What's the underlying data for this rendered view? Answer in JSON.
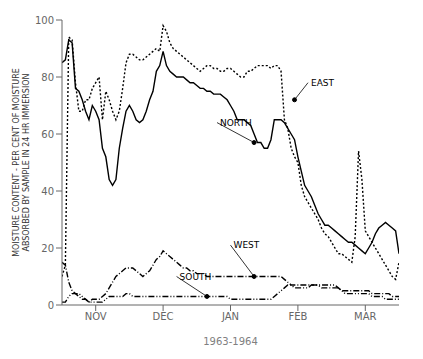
{
  "chart_data": {
    "type": "line",
    "x_label": "1963-1964",
    "y_label": "MOISTURE CONTENT - PER CENT OF MOISTURE\nABSORBED BY SAMPLE IN 24 HR IMMERSION",
    "xlim": [
      0,
      100
    ],
    "xticks": [
      {
        "value": 10,
        "label": "NOV"
      },
      {
        "value": 30,
        "label": "DEC"
      },
      {
        "value": 50,
        "label": "JAN"
      },
      {
        "value": 70,
        "label": "FEB"
      },
      {
        "value": 90,
        "label": "MAR"
      }
    ],
    "ylim": [
      0,
      100
    ],
    "yticks": [
      0,
      20,
      40,
      60,
      80,
      100
    ],
    "grid": false,
    "x": [
      0,
      1,
      2,
      3,
      4,
      5,
      6,
      7,
      8,
      9,
      10,
      11,
      12,
      13,
      14,
      15,
      16,
      17,
      18,
      19,
      20,
      21,
      22,
      23,
      24,
      25,
      26,
      27,
      28,
      29,
      30,
      31,
      32,
      33,
      34,
      35,
      36,
      37,
      38,
      39,
      40,
      41,
      42,
      43,
      44,
      45,
      46,
      47,
      48,
      49,
      50,
      51,
      52,
      53,
      54,
      55,
      56,
      57,
      58,
      59,
      60,
      61,
      62,
      63,
      64,
      65,
      66,
      67,
      68,
      69,
      70,
      71,
      72,
      73,
      74,
      75,
      76,
      77,
      78,
      79,
      80,
      81,
      82,
      83,
      84,
      85,
      86,
      87,
      88,
      89,
      90,
      91,
      92,
      93,
      94,
      95,
      96,
      97,
      98,
      99,
      100
    ],
    "series": [
      {
        "name": "EAST",
        "color": "#000000",
        "line_style": "dotted",
        "values": [
          10,
          14,
          94,
          93,
          78,
          68,
          68,
          72,
          72,
          76,
          78,
          80,
          65,
          75,
          72,
          68,
          65,
          68,
          76,
          85,
          88,
          88,
          87,
          86,
          86,
          87,
          88,
          89,
          90,
          89,
          98,
          96,
          92,
          90,
          89,
          88,
          87,
          86,
          85,
          84,
          83,
          82,
          83,
          84,
          84,
          83,
          83,
          82,
          82,
          83,
          83,
          82,
          81,
          80,
          80,
          82,
          82,
          83,
          84,
          84,
          84,
          84,
          83,
          84,
          84,
          82,
          65,
          62,
          55,
          52,
          50,
          42,
          38,
          36,
          34,
          32,
          30,
          27,
          25,
          24,
          22,
          20,
          18,
          18,
          17,
          16,
          15,
          24,
          54,
          44,
          26,
          24,
          22,
          20,
          18,
          16,
          14,
          12,
          10,
          9,
          15
        ]
      },
      {
        "name": "NORTH",
        "color": "#000000",
        "line_style": "solid",
        "values": [
          85,
          86,
          93,
          92,
          76,
          75,
          72,
          68,
          65,
          70,
          68,
          65,
          55,
          52,
          44,
          42,
          44,
          55,
          62,
          68,
          70,
          68,
          65,
          64,
          65,
          68,
          72,
          75,
          82,
          84,
          89,
          84,
          82,
          81,
          80,
          80,
          80,
          79,
          78,
          78,
          77,
          76,
          76,
          75,
          75,
          74,
          74,
          74,
          73,
          72,
          70,
          68,
          65,
          65,
          65,
          64,
          63,
          60,
          57,
          57,
          55,
          55,
          58,
          65,
          65,
          65,
          64,
          62,
          60,
          58,
          52,
          47,
          42,
          40,
          38,
          35,
          32,
          30,
          28,
          28,
          27,
          26,
          25,
          24,
          23,
          22,
          22,
          21,
          20,
          19,
          18,
          20,
          22,
          25,
          27,
          28,
          29,
          28,
          27,
          26,
          18
        ]
      },
      {
        "name": "WEST",
        "color": "#000000",
        "line_style": "dashdot",
        "values": [
          15,
          14,
          8,
          5,
          4,
          3,
          2,
          2,
          1,
          2,
          2,
          2,
          3,
          4,
          6,
          8,
          10,
          11,
          12,
          13,
          13,
          13,
          12,
          11,
          10,
          11,
          12,
          14,
          16,
          17,
          19,
          18,
          17,
          16,
          15,
          14,
          13,
          13,
          12,
          12,
          11,
          11,
          11,
          10,
          10,
          10,
          10,
          10,
          10,
          10,
          10,
          10,
          10,
          10,
          10,
          10,
          10,
          10,
          10,
          10,
          10,
          10,
          10,
          10,
          10,
          10,
          9,
          8,
          7,
          7,
          7,
          7,
          7,
          7,
          7,
          7,
          7,
          6,
          6,
          6,
          6,
          6,
          6,
          5,
          5,
          5,
          5,
          5,
          5,
          5,
          5,
          5,
          4,
          4,
          4,
          4,
          4,
          4,
          3,
          3,
          3
        ]
      },
      {
        "name": "SOUTH",
        "color": "#000000",
        "line_style": "dashdotdot",
        "values": [
          1,
          1,
          3,
          4,
          4,
          4,
          3,
          2,
          1,
          1,
          1,
          1,
          1,
          2,
          3,
          3,
          3,
          3,
          3,
          4,
          4,
          3,
          3,
          3,
          3,
          3,
          3,
          3,
          3,
          3,
          3,
          3,
          3,
          3,
          3,
          3,
          3,
          3,
          3,
          3,
          3,
          3,
          3,
          3,
          3,
          3,
          3,
          3,
          3,
          3,
          2,
          2,
          2,
          2,
          2,
          2,
          2,
          2,
          2,
          2,
          2,
          2,
          2,
          3,
          4,
          5,
          6,
          7,
          7,
          6,
          6,
          6,
          6,
          6,
          7,
          7,
          7,
          7,
          7,
          7,
          7,
          7,
          6,
          5,
          4,
          4,
          4,
          4,
          4,
          4,
          4,
          4,
          3,
          3,
          3,
          3,
          2,
          2,
          2,
          2,
          2
        ]
      }
    ],
    "annotations": [
      {
        "text": "NORTH",
        "x": 57,
        "y": 57,
        "text_x": 46,
        "text_y": 64
      },
      {
        "text": "EAST",
        "x": 69,
        "y": 72,
        "text_x": 73,
        "text_y": 78
      },
      {
        "text": "WEST",
        "x": 57,
        "y": 10,
        "text_x": 50,
        "text_y": 21
      },
      {
        "text": "SOUTH",
        "x": 43,
        "y": 3,
        "text_x": 34,
        "text_y": 10
      }
    ]
  }
}
